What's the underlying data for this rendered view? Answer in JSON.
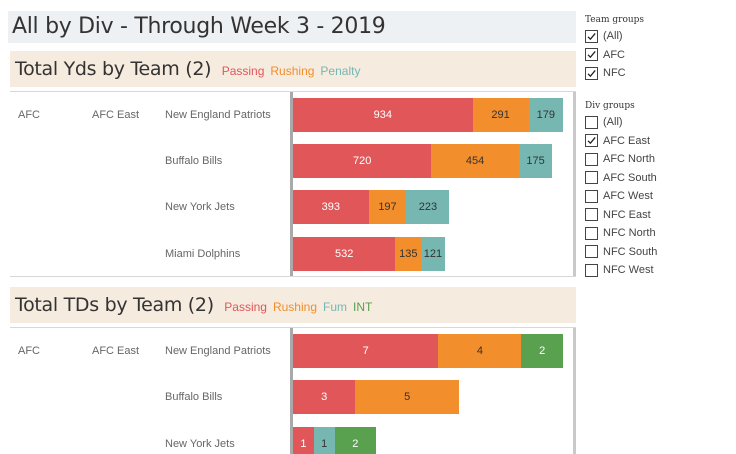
{
  "dashboard_title": "All by Div - Through Week 3 - 2019",
  "colors": {
    "passing": "#e15759",
    "rushing": "#f28e2b",
    "penalty": "#76b7b2",
    "fum": "#76b7b2",
    "int": "#59a14f"
  },
  "filters": {
    "team_groups": {
      "title": "Team groups",
      "options": [
        {
          "label": "(All)",
          "checked": true
        },
        {
          "label": "AFC",
          "checked": true
        },
        {
          "label": "NFC",
          "checked": true
        }
      ]
    },
    "div_groups": {
      "title": "Div groups",
      "options": [
        {
          "label": "(All)",
          "checked": false
        },
        {
          "label": "AFC East",
          "checked": true
        },
        {
          "label": "AFC North",
          "checked": false
        },
        {
          "label": "AFC South",
          "checked": false
        },
        {
          "label": "AFC West",
          "checked": false
        },
        {
          "label": "NFC East",
          "checked": false
        },
        {
          "label": "NFC North",
          "checked": false
        },
        {
          "label": "NFC South",
          "checked": false
        },
        {
          "label": "NFC West",
          "checked": false
        }
      ]
    }
  },
  "chart_data": [
    {
      "type": "bar",
      "orientation": "horizontal",
      "stacked": true,
      "title": "Total Yds by Team (2)",
      "legend": [
        "Passing",
        "Rushing",
        "Penalty"
      ],
      "conference": "AFC",
      "division": "AFC East",
      "categories": [
        "New England Patriots",
        "Buffalo Bills",
        "New York Jets",
        "Miami Dolphins"
      ],
      "series": [
        {
          "name": "Passing",
          "values": [
            934,
            720,
            393,
            532
          ]
        },
        {
          "name": "Rushing",
          "values": [
            291,
            454,
            197,
            135
          ]
        },
        {
          "name": "Penalty",
          "values": [
            179,
            175,
            223,
            121
          ]
        }
      ],
      "xlim": [
        0,
        1500
      ]
    },
    {
      "type": "bar",
      "orientation": "horizontal",
      "stacked": true,
      "title": "Total TDs by Team (2)",
      "legend": [
        "Passing",
        "Rushing",
        "Fum",
        "INT"
      ],
      "conference": "AFC",
      "division": "AFC East",
      "categories": [
        "New England Patriots",
        "Buffalo Bills",
        "New York Jets"
      ],
      "series": [
        {
          "name": "Passing",
          "values": [
            7,
            3,
            1
          ]
        },
        {
          "name": "Rushing",
          "values": [
            4,
            5,
            0
          ]
        },
        {
          "name": "Fum",
          "values": [
            0,
            0,
            1
          ]
        },
        {
          "name": "INT",
          "values": [
            2,
            0,
            2
          ]
        }
      ],
      "xlim": [
        0,
        14.2
      ]
    }
  ]
}
